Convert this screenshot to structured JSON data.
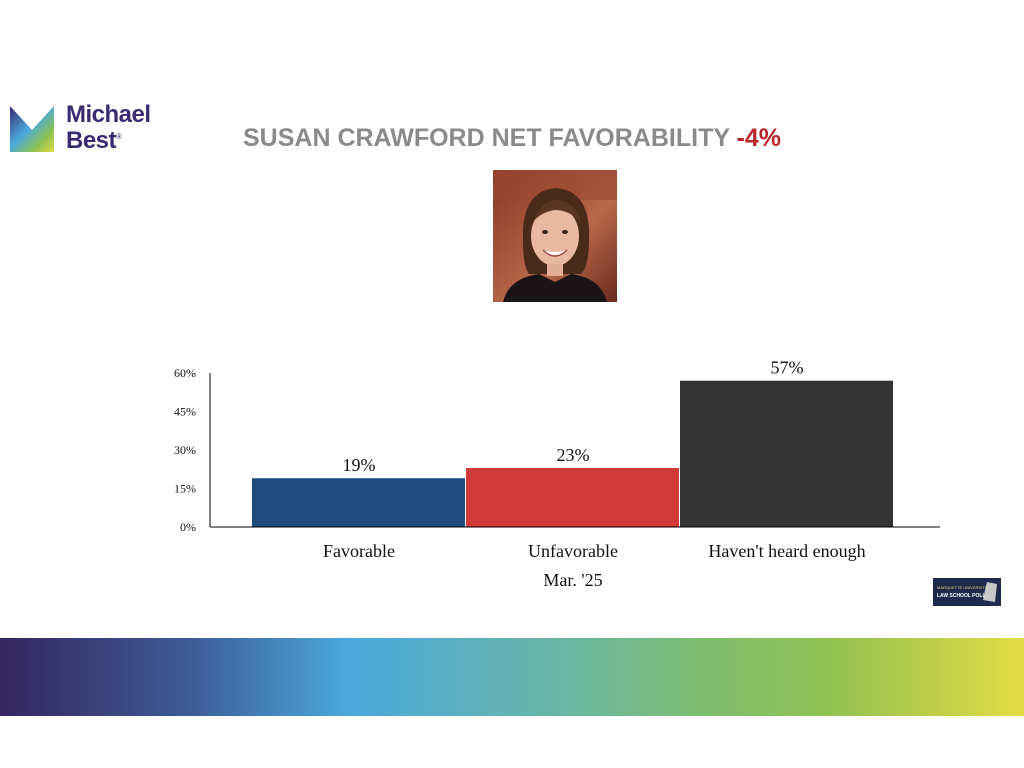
{
  "logo": {
    "line1": "Michael",
    "line2": "Best",
    "mark": "®"
  },
  "header": {
    "title": "SUSAN CRAWFORD NET FAVORABILITY",
    "net_value": "-4%"
  },
  "photo": {
    "icon": "portrait-photo"
  },
  "badge": {
    "line1": "MARQUETTE UNIVERSITY",
    "line2": "LAW SCHOOL POLL"
  },
  "chart_data": {
    "type": "bar",
    "categories": [
      "Favorable",
      "Unfavorable",
      "Haven't heard enough"
    ],
    "values": [
      19,
      23,
      57
    ],
    "value_labels": [
      "19%",
      "23%",
      "57%"
    ],
    "colors": [
      "#1f4b7e",
      "#d13a38",
      "#333333"
    ],
    "xlabel": "Mar. '25",
    "ylabel": "",
    "ylim": [
      0,
      60
    ],
    "yticks": [
      0,
      15,
      30,
      45,
      60
    ],
    "ytick_labels": [
      "0%",
      "15%",
      "30%",
      "45%",
      "60%"
    ],
    "grid": false
  }
}
